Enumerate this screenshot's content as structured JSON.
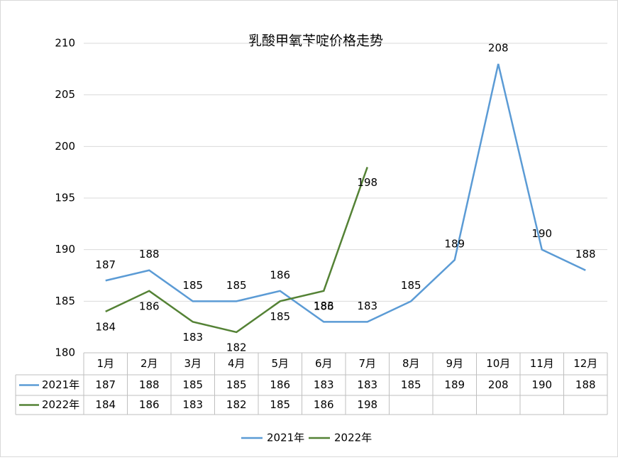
{
  "chart_data": {
    "type": "line",
    "title": "乳酸甲氧苄啶价格走势",
    "categories": [
      "1月",
      "2月",
      "3月",
      "4月",
      "5月",
      "6月",
      "7月",
      "8月",
      "9月",
      "10月",
      "11月",
      "12月"
    ],
    "series": [
      {
        "name": "2021年",
        "color": "#5b9bd5",
        "values": [
          187,
          188,
          185,
          185,
          186,
          183,
          183,
          185,
          189,
          208,
          190,
          188
        ]
      },
      {
        "name": "2022年",
        "color": "#548235",
        "values": [
          184,
          186,
          183,
          182,
          185,
          186,
          198,
          null,
          null,
          null,
          null,
          null
        ]
      }
    ],
    "ylim": [
      180,
      210
    ],
    "yticks": [
      180,
      185,
      190,
      195,
      200,
      205,
      210
    ],
    "grid": true,
    "legend": "bottom"
  }
}
